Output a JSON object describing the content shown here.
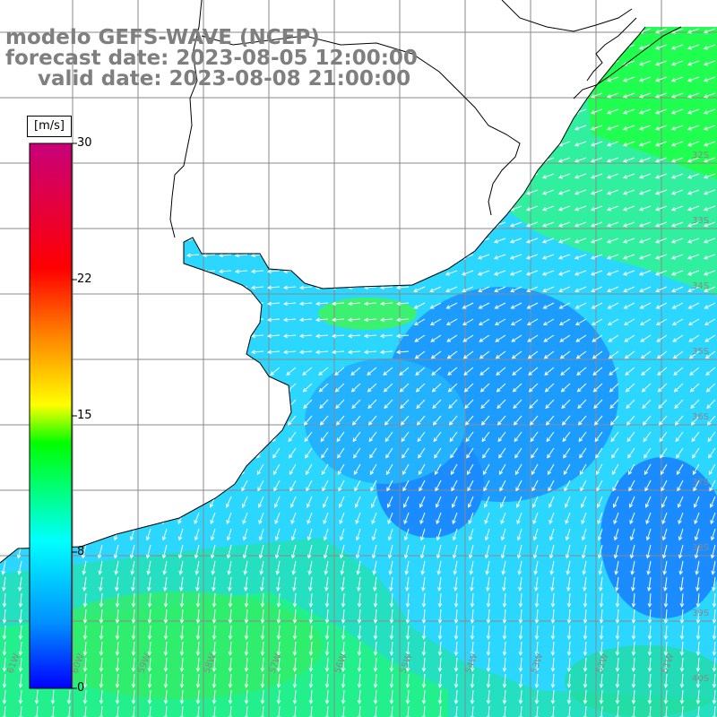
{
  "title": {
    "line1": "modelo GEFS-WAVE (NCEP)",
    "line2": "forecast date: 2023-08-05 12:00:00",
    "line3": "valid date: 2023-08-08 21:00:00"
  },
  "colorbar": {
    "unit": "[m/s]",
    "ticks": [
      {
        "label": "30",
        "value": 30
      },
      {
        "label": "22",
        "value": 22
      },
      {
        "label": "15",
        "value": 15
      },
      {
        "label": "8",
        "value": 8
      },
      {
        "label": "0",
        "value": 0
      }
    ],
    "min": 0,
    "max": 30,
    "colors": [
      "#0000ff",
      "#0090ff",
      "#00ffff",
      "#00ff00",
      "#ffff00",
      "#ff8000",
      "#ff0000",
      "#c8007a"
    ]
  },
  "map": {
    "lon_labels": [
      "61W",
      "60W",
      "59W",
      "58W",
      "57W",
      "56W",
      "55W",
      "54W",
      "53W",
      "52W",
      "51W"
    ],
    "lat_labels": [
      "32S",
      "33S",
      "34S",
      "35S",
      "36S",
      "37S",
      "38S",
      "39S",
      "40S"
    ],
    "ocean_color": "#33d9ff",
    "land_color": "#ffffff"
  }
}
